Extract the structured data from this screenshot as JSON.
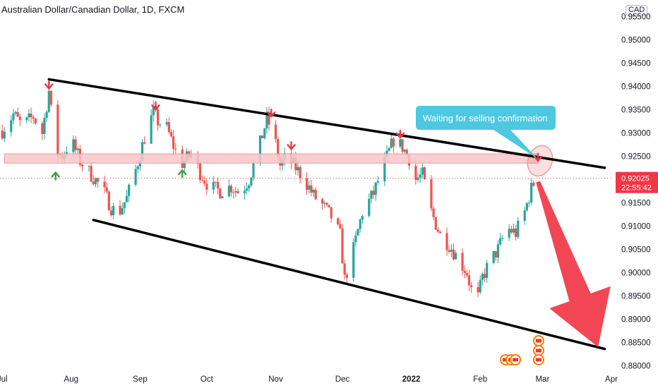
{
  "header": {
    "title": "Australian Dollar/Canadian Dollar, 1D, FXCM",
    "currency": "CAD"
  },
  "colors": {
    "up": "#26a69a",
    "down": "#ef5350",
    "arrow_down": "#e53945",
    "arrow_up": "#43a047",
    "channel": "#000000",
    "zone_fill": "#f8c7c9",
    "callout": "#4dc8e0",
    "big_arrow": "#f23645",
    "last_price": "#f23645"
  },
  "chart_data": {
    "type": "candlestick",
    "symbol": "AUD/CAD",
    "timeframe": "1D",
    "source": "FXCM",
    "y_ticks": [
      "0.95500",
      "0.95000",
      "0.94500",
      "0.94000",
      "0.93500",
      "0.93000",
      "0.92500",
      "0.92000",
      "0.91500",
      "0.91000",
      "0.90500",
      "0.90000",
      "0.89500",
      "0.89000",
      "0.88500",
      "0.88000"
    ],
    "y_tick_values": [
      0.955,
      0.95,
      0.945,
      0.94,
      0.935,
      0.93,
      0.925,
      0.92,
      0.915,
      0.91,
      0.905,
      0.9,
      0.895,
      0.89,
      0.885,
      0.88
    ],
    "ylim": [
      0.879,
      0.9555
    ],
    "x_ticks": [
      {
        "label": "Jul",
        "date": "2021-07-01"
      },
      {
        "label": "Aug",
        "date": "2021-08-01"
      },
      {
        "label": "Sep",
        "date": "2021-09-01"
      },
      {
        "label": "Oct",
        "date": "2021-10-01"
      },
      {
        "label": "Nov",
        "date": "2021-11-01"
      },
      {
        "label": "Dec",
        "date": "2021-12-01"
      },
      {
        "label": "2022",
        "date": "2022-01-01"
      },
      {
        "label": "Feb",
        "date": "2022-02-01"
      },
      {
        "label": "Mar",
        "date": "2022-03-01"
      },
      {
        "label": "Apr",
        "date": "2022-04-01"
      }
    ],
    "xlim": [
      "2021-06-30",
      "2022-04-01"
    ],
    "path_points": [
      [
        "2021-07-01",
        0.9305
      ],
      [
        "2021-07-06",
        0.934
      ],
      [
        "2021-07-10",
        0.9315
      ],
      [
        "2021-07-15",
        0.9335
      ],
      [
        "2021-07-19",
        0.93
      ],
      [
        "2021-07-22",
        0.939
      ],
      [
        "2021-07-25",
        0.926
      ],
      [
        "2021-07-28",
        0.925
      ],
      [
        "2021-08-01",
        0.9285
      ],
      [
        "2021-08-05",
        0.924
      ],
      [
        "2021-08-10",
        0.921
      ],
      [
        "2021-08-15",
        0.918
      ],
      [
        "2021-08-19",
        0.914
      ],
      [
        "2021-08-22",
        0.9125
      ],
      [
        "2021-08-26",
        0.916
      ],
      [
        "2021-08-30",
        0.922
      ],
      [
        "2021-09-03",
        0.929
      ],
      [
        "2021-09-07",
        0.9345
      ],
      [
        "2021-09-09",
        0.9325
      ],
      [
        "2021-09-13",
        0.931
      ],
      [
        "2021-09-17",
        0.926
      ],
      [
        "2021-09-20",
        0.9235
      ],
      [
        "2021-09-24",
        0.9255
      ],
      [
        "2021-09-28",
        0.9215
      ],
      [
        "2021-10-02",
        0.9185
      ],
      [
        "2021-10-07",
        0.9175
      ],
      [
        "2021-10-12",
        0.9185
      ],
      [
        "2021-10-16",
        0.917
      ],
      [
        "2021-10-20",
        0.92
      ],
      [
        "2021-10-24",
        0.926
      ],
      [
        "2021-10-28",
        0.933
      ],
      [
        "2021-10-31",
        0.93
      ],
      [
        "2021-11-03",
        0.923
      ],
      [
        "2021-11-06",
        0.925
      ],
      [
        "2021-11-10",
        0.9225
      ],
      [
        "2021-11-14",
        0.92
      ],
      [
        "2021-11-18",
        0.9165
      ],
      [
        "2021-11-22",
        0.9145
      ],
      [
        "2021-11-26",
        0.912
      ],
      [
        "2021-11-30",
        0.908
      ],
      [
        "2021-12-02",
        0.8985
      ],
      [
        "2021-12-06",
        0.905
      ],
      [
        "2021-12-10",
        0.913
      ],
      [
        "2021-12-15",
        0.917
      ],
      [
        "2021-12-20",
        0.9235
      ],
      [
        "2021-12-24",
        0.9285
      ],
      [
        "2021-12-28",
        0.927
      ],
      [
        "2021-12-31",
        0.9245
      ],
      [
        "2022-01-03",
        0.92
      ],
      [
        "2022-01-06",
        0.921
      ],
      [
        "2022-01-10",
        0.913
      ],
      [
        "2022-01-14",
        0.908
      ],
      [
        "2022-01-18",
        0.906
      ],
      [
        "2022-01-22",
        0.903
      ],
      [
        "2022-01-26",
        0.9
      ],
      [
        "2022-01-30",
        0.8925
      ],
      [
        "2022-02-02",
        0.899
      ],
      [
        "2022-02-05",
        0.902
      ],
      [
        "2022-02-09",
        0.905
      ],
      [
        "2022-02-13",
        0.9095
      ],
      [
        "2022-02-17",
        0.9085
      ],
      [
        "2022-02-21",
        0.913
      ],
      [
        "2022-02-24",
        0.918
      ],
      [
        "2022-02-26",
        0.9203
      ]
    ],
    "channel_upper": [
      [
        "2021-07-22",
        0.9415
      ],
      [
        "2022-03-29",
        0.9225
      ]
    ],
    "channel_lower": [
      [
        "2021-08-11",
        0.9113
      ],
      [
        "2022-03-29",
        0.8836
      ]
    ],
    "resistance_zone": [
      [
        "2021-07-02",
        0.9255
      ],
      [
        "2022-02-27",
        0.9235
      ]
    ],
    "sell_markers": [
      [
        "2021-07-22",
        0.9395
      ],
      [
        "2021-09-08",
        0.935
      ],
      [
        "2021-10-30",
        0.9335
      ],
      [
        "2021-11-08",
        0.9265
      ],
      [
        "2021-12-27",
        0.929
      ],
      [
        "2022-02-27",
        0.924
      ]
    ],
    "buy_markers": [
      [
        "2021-07-25",
        0.9215
      ],
      [
        "2021-09-20",
        0.922
      ]
    ],
    "forecast_arrow": [
      [
        "2022-02-27",
        0.9195
      ],
      [
        "2022-03-26",
        0.884
      ]
    ],
    "event_icons_date": "2022-02-26",
    "annotation": "Waiting for selling confirmation",
    "last_price": "0.92025",
    "last_price_value": 0.92025,
    "countdown": "22:55:42"
  }
}
